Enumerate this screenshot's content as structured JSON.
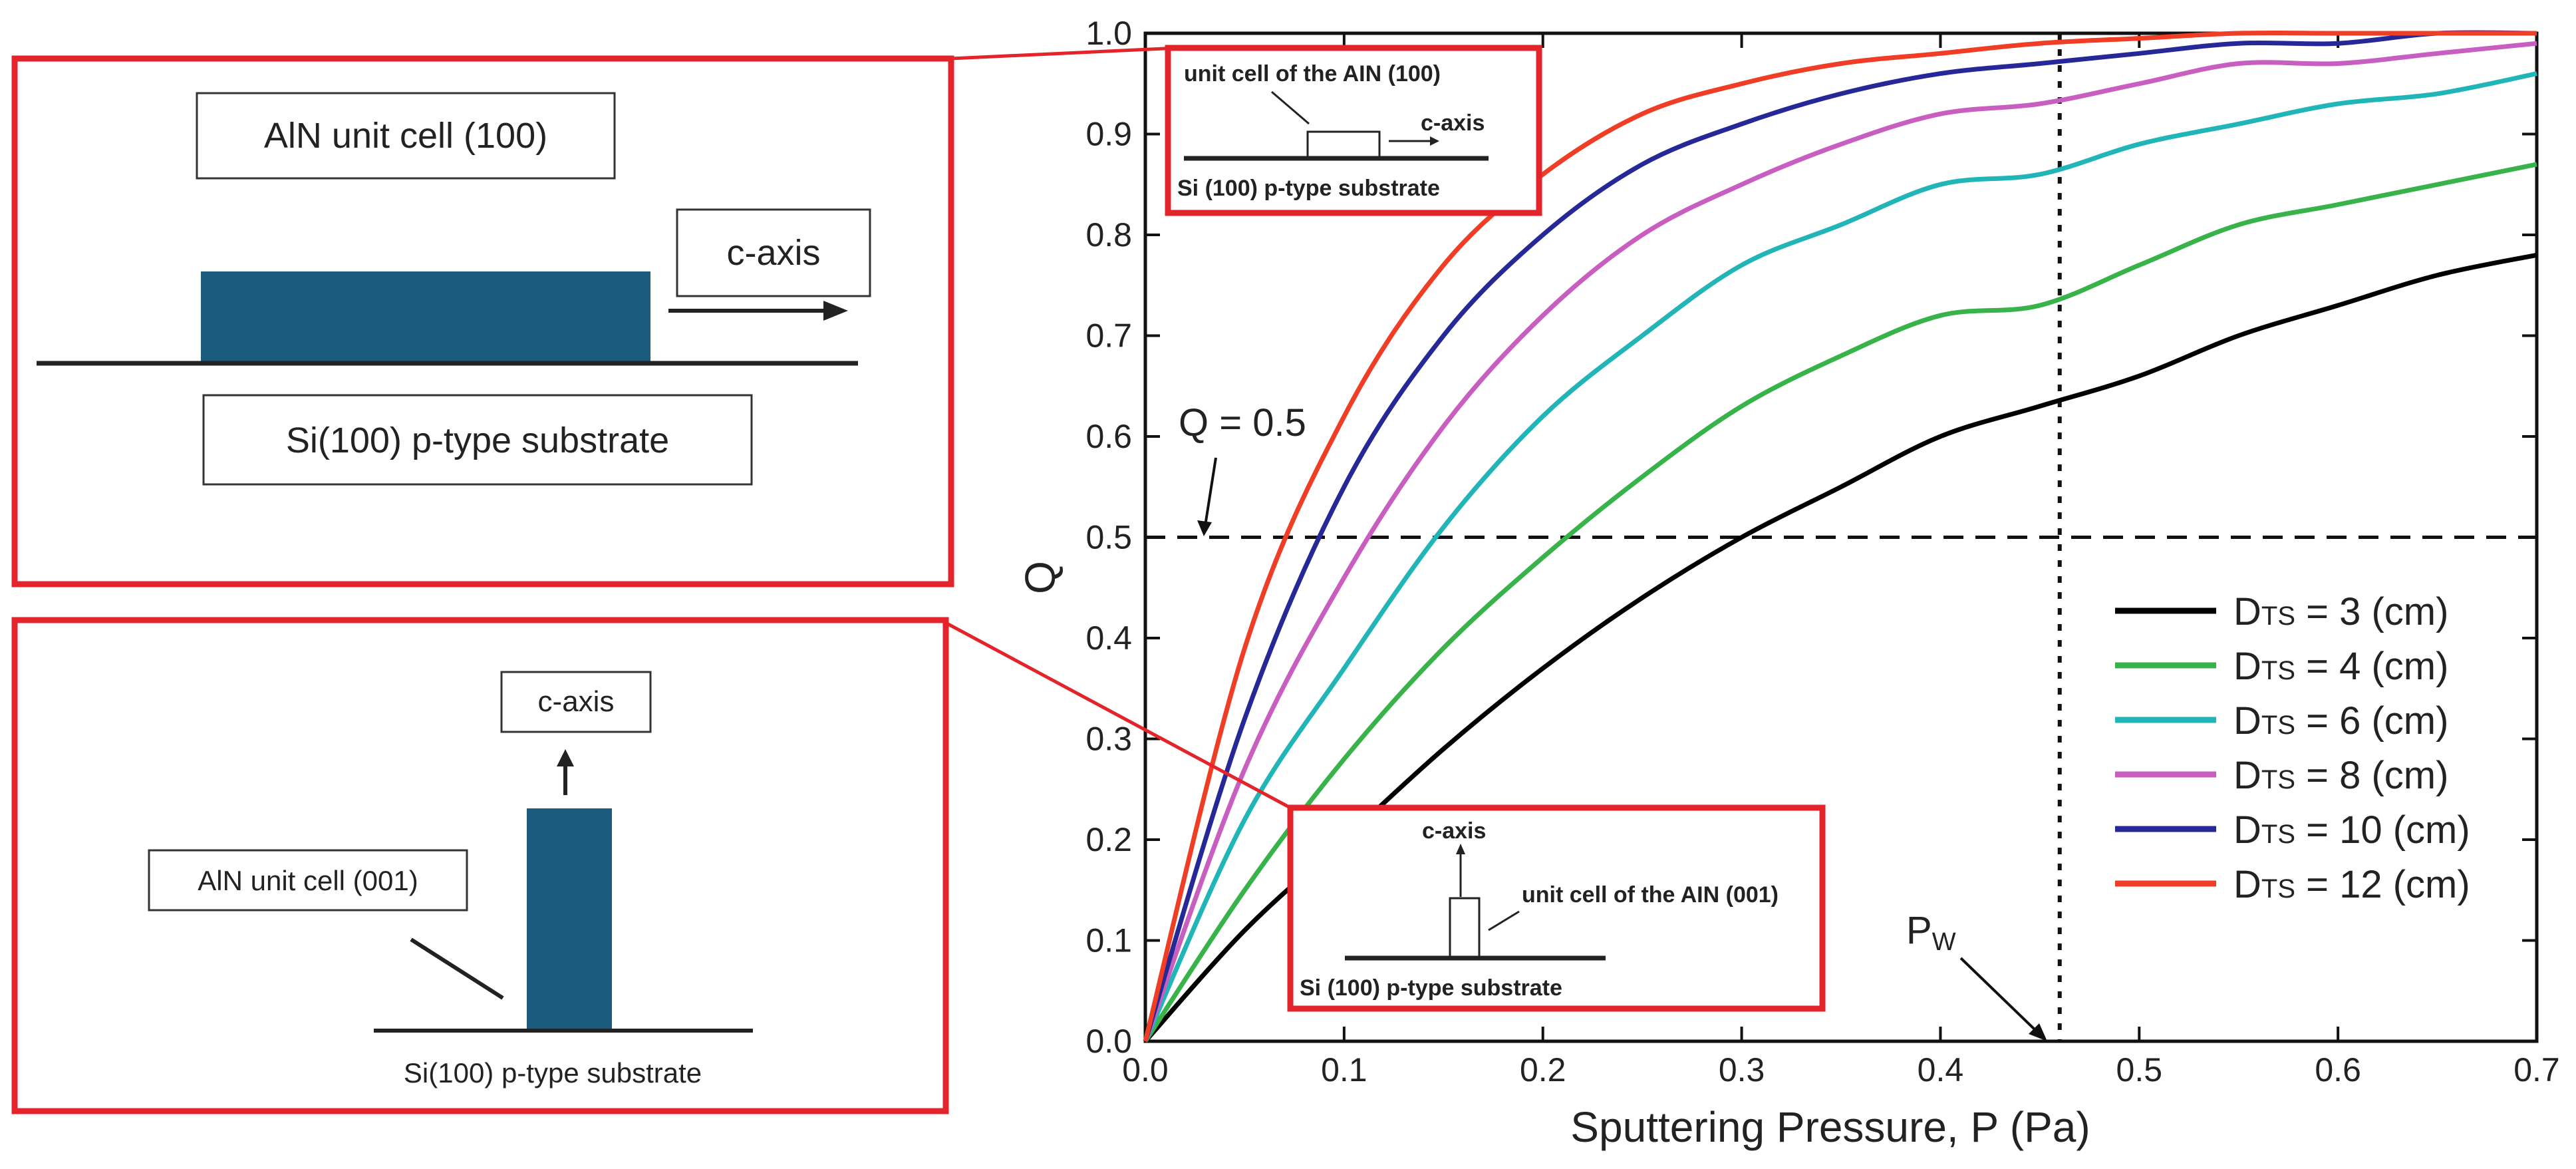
{
  "colors": {
    "frame": "#e4242b",
    "cell": "#1b5b7e",
    "series": [
      "#000000",
      "#37b34a",
      "#21b5b8",
      "#c85ec0",
      "#272897",
      "#ef3e25"
    ]
  },
  "panel_top": {
    "cell_label": "AlN unit cell (100)",
    "axis_label": "c-axis",
    "substrate_label": "Si(100) p-type substrate"
  },
  "panel_bottom": {
    "axis_label": "c-axis",
    "cell_label": "AlN unit cell (001)",
    "substrate_label": "Si(100) p-type substrate"
  },
  "inset_top": {
    "cell_label": "unit cell of the AIN (100)",
    "axis_label": "c-axis",
    "substrate_label": "Si (100) p-type substrate"
  },
  "inset_bottom": {
    "axis_label": "c-axis",
    "cell_label": "unit cell of the AIN (001)",
    "substrate_label": "Si (100) p-type substrate"
  },
  "chart_data": {
    "type": "line",
    "xlabel": "Sputtering Pressure, P (Pa)",
    "ylabel": "Q",
    "xlim": [
      0.0,
      0.7
    ],
    "ylim": [
      0.0,
      1.0
    ],
    "x_ticks": [
      "0.0",
      "0.1",
      "0.2",
      "0.3",
      "0.4",
      "0.5",
      "0.6",
      "0.7"
    ],
    "y_ticks": [
      "0.0",
      "0.1",
      "0.2",
      "0.3",
      "0.4",
      "0.5",
      "0.6",
      "0.7",
      "0.8",
      "0.9",
      "1.0"
    ],
    "x": [
      0.0,
      0.05,
      0.1,
      0.15,
      0.2,
      0.25,
      0.3,
      0.35,
      0.4,
      0.45,
      0.5,
      0.55,
      0.6,
      0.65,
      0.7
    ],
    "series": [
      {
        "name_main": "D",
        "name_sub": "TS",
        "name_rest": " = 3 (cm)",
        "values": [
          0.0,
          0.11,
          0.2,
          0.29,
          0.37,
          0.44,
          0.5,
          0.55,
          0.6,
          0.63,
          0.66,
          0.7,
          0.73,
          0.76,
          0.78
        ]
      },
      {
        "name_main": "D",
        "name_sub": "TS",
        "name_rest": " = 4 (cm)",
        "values": [
          0.0,
          0.15,
          0.28,
          0.39,
          0.48,
          0.56,
          0.63,
          0.68,
          0.72,
          0.73,
          0.77,
          0.81,
          0.83,
          0.85,
          0.87
        ]
      },
      {
        "name_main": "D",
        "name_sub": "TS",
        "name_rest": " = 6 (cm)",
        "values": [
          0.0,
          0.22,
          0.37,
          0.51,
          0.62,
          0.7,
          0.77,
          0.81,
          0.85,
          0.86,
          0.89,
          0.91,
          0.93,
          0.94,
          0.96
        ]
      },
      {
        "name_main": "D",
        "name_sub": "TS",
        "name_rest": " = 8 (cm)",
        "values": [
          0.0,
          0.27,
          0.46,
          0.61,
          0.72,
          0.8,
          0.85,
          0.89,
          0.92,
          0.93,
          0.95,
          0.97,
          0.97,
          0.98,
          0.99
        ]
      },
      {
        "name_main": "D",
        "name_sub": "TS",
        "name_rest": " = 10 (cm)",
        "values": [
          0.0,
          0.32,
          0.55,
          0.7,
          0.8,
          0.87,
          0.91,
          0.94,
          0.96,
          0.97,
          0.98,
          0.99,
          0.99,
          1.0,
          1.0
        ]
      },
      {
        "name_main": "D",
        "name_sub": "TS",
        "name_rest": " = 12 (cm)",
        "values": [
          0.0,
          0.39,
          0.62,
          0.77,
          0.86,
          0.92,
          0.95,
          0.97,
          0.98,
          0.99,
          0.995,
          1.0,
          1.0,
          1.0,
          1.0
        ]
      }
    ],
    "reference_lines": {
      "q_label": "Q = 0.5",
      "q_value": 0.5,
      "p_label_main": "P",
      "p_label_sub": "W",
      "p_value": 0.46
    }
  }
}
